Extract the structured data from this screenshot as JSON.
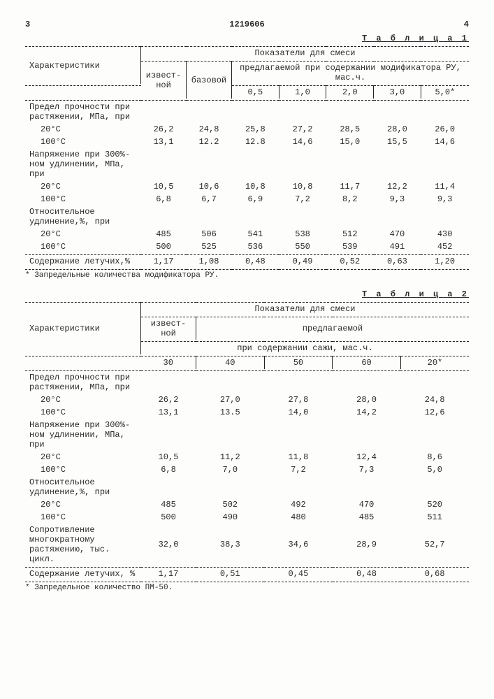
{
  "page": {
    "left_num": "3",
    "doc_num": "1219606",
    "right_num": "4"
  },
  "table1": {
    "caption": "Т а б л и ц а  1",
    "head": {
      "char": "Характеристики",
      "group": "Показатели для смеси",
      "c_izv": "извест-\nной",
      "c_baz": "базовой",
      "c_pred": "предлагаемой при содержании модификатора РУ, мас.ч.",
      "cols": [
        "0,5",
        "1,0",
        "2,0",
        "3,0",
        "5,0*"
      ]
    },
    "rows": [
      {
        "label": "Предел прочности при растяжении, МПа, при",
        "vals": [
          "",
          "",
          "",
          "",
          "",
          "",
          ""
        ]
      },
      {
        "label": "20°C",
        "sub": true,
        "vals": [
          "26,2",
          "24,8",
          "25,8",
          "27,2",
          "28,5",
          "28,0",
          "26,0"
        ]
      },
      {
        "label": "100°C",
        "sub": true,
        "vals": [
          "13,1",
          "12.2",
          "12.8",
          "14,6",
          "15,0",
          "15,5",
          "14,6"
        ]
      },
      {
        "label": "Напряжение при 300%-ном удлинении, МПа, при",
        "vals": [
          "",
          "",
          "",
          "",
          "",
          "",
          ""
        ]
      },
      {
        "label": "20°C",
        "sub": true,
        "vals": [
          "10,5",
          "10,6",
          "10,8",
          "10,8",
          "11,7",
          "12,2",
          "11,4"
        ]
      },
      {
        "label": "100°C",
        "sub": true,
        "vals": [
          "6,8",
          "6,7",
          "6,9",
          "7,2",
          "8,2",
          "9,3",
          "9,3"
        ]
      },
      {
        "label": "Относительное удлинение,%, при",
        "vals": [
          "",
          "",
          "",
          "",
          "",
          "",
          ""
        ]
      },
      {
        "label": "20°C",
        "sub": true,
        "vals": [
          "485",
          "506",
          "541",
          "538",
          "512",
          "470",
          "430"
        ]
      },
      {
        "label": "100°C",
        "sub": true,
        "vals": [
          "500",
          "525",
          "536",
          "550",
          "539",
          "491",
          "452"
        ]
      },
      {
        "label": "Содержание летучих,%",
        "vals": [
          "1,17",
          "1,08",
          "0,48",
          "0,49",
          "0,52",
          "0,63",
          "1,20"
        ],
        "rule": true
      }
    ],
    "footnote": "* Запредельные количества модификатора РУ."
  },
  "table2": {
    "caption": "Т а б л и ц а  2",
    "head": {
      "char": "Характеристики",
      "group": "Показатели для смеси",
      "c_izv": "извест-\nной",
      "c_pred": "предлагаемой",
      "sub": "при содержании сажи, мас.ч.",
      "cols": [
        "30",
        "40",
        "50",
        "60",
        "20*"
      ]
    },
    "rows": [
      {
        "label": "Предел прочности при растяжении, МПа, при",
        "vals": [
          "",
          "",
          "",
          "",
          ""
        ]
      },
      {
        "label": "20°C",
        "sub": true,
        "vals": [
          "26,2",
          "27,0",
          "27,8",
          "28,0",
          "24,8"
        ]
      },
      {
        "label": "100°C",
        "sub": true,
        "vals": [
          "13,1",
          "13.5",
          "14,0",
          "14,2",
          "12,6"
        ]
      },
      {
        "label": "Напряжение при 300%-ном удлинении, МПа, при",
        "vals": [
          "",
          "",
          "",
          "",
          ""
        ]
      },
      {
        "label": "20°C",
        "sub": true,
        "vals": [
          "10,5",
          "11,2",
          "11,8",
          "12,4",
          "8,6"
        ]
      },
      {
        "label": "100°C",
        "sub": true,
        "vals": [
          "6,8",
          "7,0",
          "7,2",
          "7,3",
          "5,0"
        ]
      },
      {
        "label": "Относительное удлинение,%, при",
        "vals": [
          "",
          "",
          "",
          "",
          ""
        ]
      },
      {
        "label": "20°C",
        "sub": true,
        "vals": [
          "485",
          "502",
          "492",
          "470",
          "520"
        ]
      },
      {
        "label": "100°C",
        "sub": true,
        "vals": [
          "500",
          "490",
          "480",
          "485",
          "511"
        ]
      },
      {
        "label": "Сопротивление многократному растяжению, тыс. цикл.",
        "vals": [
          "32,0",
          "38,3",
          "34,6",
          "28,9",
          "52,7"
        ]
      },
      {
        "label": "Содержание летучих, %",
        "vals": [
          "1,17",
          "0,51",
          "0,45",
          "0,48",
          "0,68"
        ],
        "rule": true
      }
    ],
    "footnote": "* Запредельное количество ПМ-50."
  }
}
